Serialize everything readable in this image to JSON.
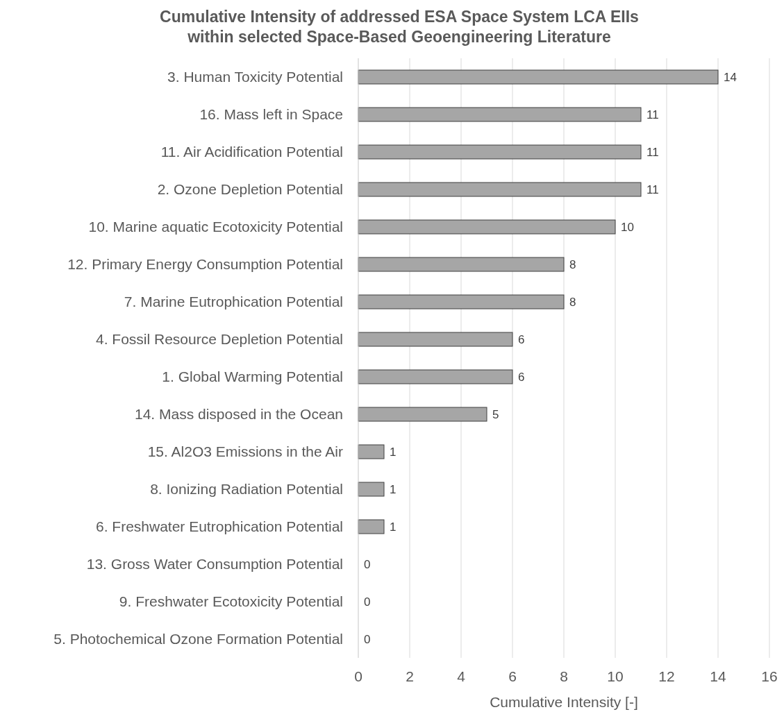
{
  "chart_data": {
    "type": "bar",
    "orientation": "horizontal",
    "title": "Cumulative Intensity of addressed ESA Space System LCA EIIs\nwithin selected Space-Based Geoengineering Literature",
    "xlabel": "Cumulative Intensity [-]",
    "categories": [
      "3. Human Toxicity Potential",
      "16. Mass left in Space",
      "11. Air Acidification Potential",
      "2. Ozone Depletion Potential",
      "10. Marine aquatic Ecotoxicity Potential",
      "12. Primary Energy Consumption Potential",
      "7. Marine Eutrophication Potential",
      "4. Fossil Resource Depletion Potential",
      "1. Global Warming Potential",
      "14. Mass disposed in the Ocean",
      "15. Al2O3 Emissions in the Air",
      "8. Ionizing Radiation Potential",
      "6. Freshwater Eutrophication Potential",
      "13. Gross Water Consumption Potential",
      "9. Freshwater Ecotoxicity Potential",
      "5. Photochemical Ozone Formation Potential"
    ],
    "values": [
      14,
      11,
      11,
      11,
      10,
      8,
      8,
      6,
      6,
      5,
      1,
      1,
      1,
      0,
      0,
      0
    ],
    "color": "#a6a6a6",
    "xlim": [
      0,
      16
    ],
    "xticks": [
      0,
      2,
      4,
      6,
      8,
      10,
      12,
      14,
      16
    ],
    "grid": "x",
    "data_labels": true
  }
}
